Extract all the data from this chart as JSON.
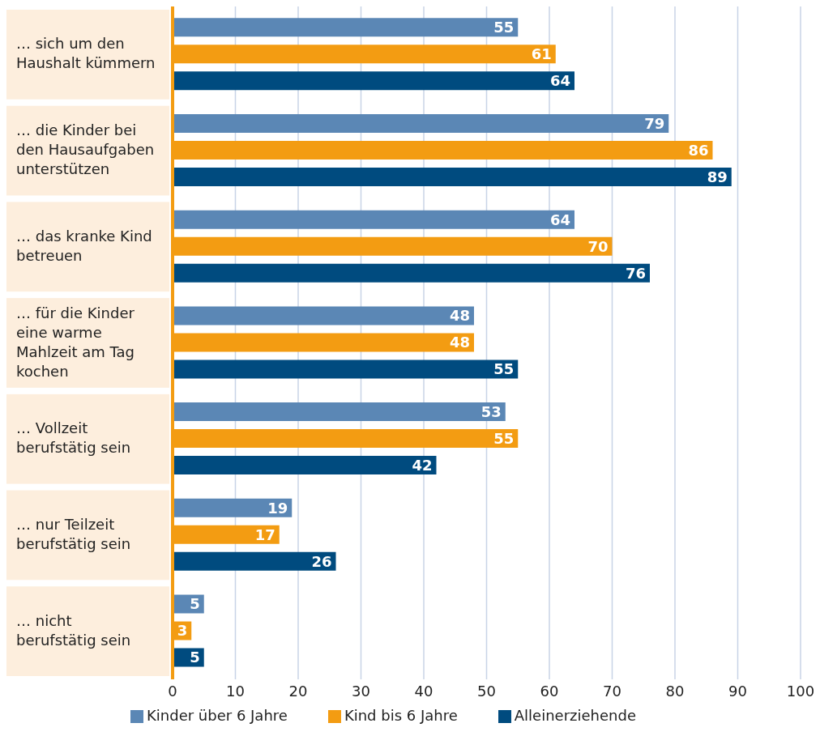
{
  "chart_data": {
    "type": "bar",
    "orientation": "horizontal",
    "categories": [
      "… sich um den Haushalt kümmern",
      "… die Kinder bei den Hausaufgaben unterstützen",
      "… das kranke Kind betreuen",
      "… für die Kinder eine warme Mahlzeit am Tag kochen",
      "… Vollzeit berufstätig sein",
      "… nur Teilzeit berufstätig sein",
      "… nicht berufstätig sein"
    ],
    "series": [
      {
        "name": "Kinder über 6 Jahre",
        "color": "#5b87b5",
        "values": [
          55,
          79,
          64,
          48,
          53,
          19,
          5
        ]
      },
      {
        "name": "Kind bis 6 Jahre",
        "color": "#f39c12",
        "values": [
          61,
          86,
          70,
          48,
          55,
          17,
          3
        ]
      },
      {
        "name": "Alleinerziehende",
        "color": "#004b7f",
        "values": [
          64,
          89,
          76,
          55,
          42,
          26,
          5
        ]
      }
    ],
    "xlim": [
      0,
      100
    ],
    "xticks": [
      0,
      10,
      20,
      30,
      40,
      50,
      60,
      70,
      80,
      90,
      100
    ],
    "grid": "x",
    "legend": "bottom",
    "data_labels": true
  }
}
